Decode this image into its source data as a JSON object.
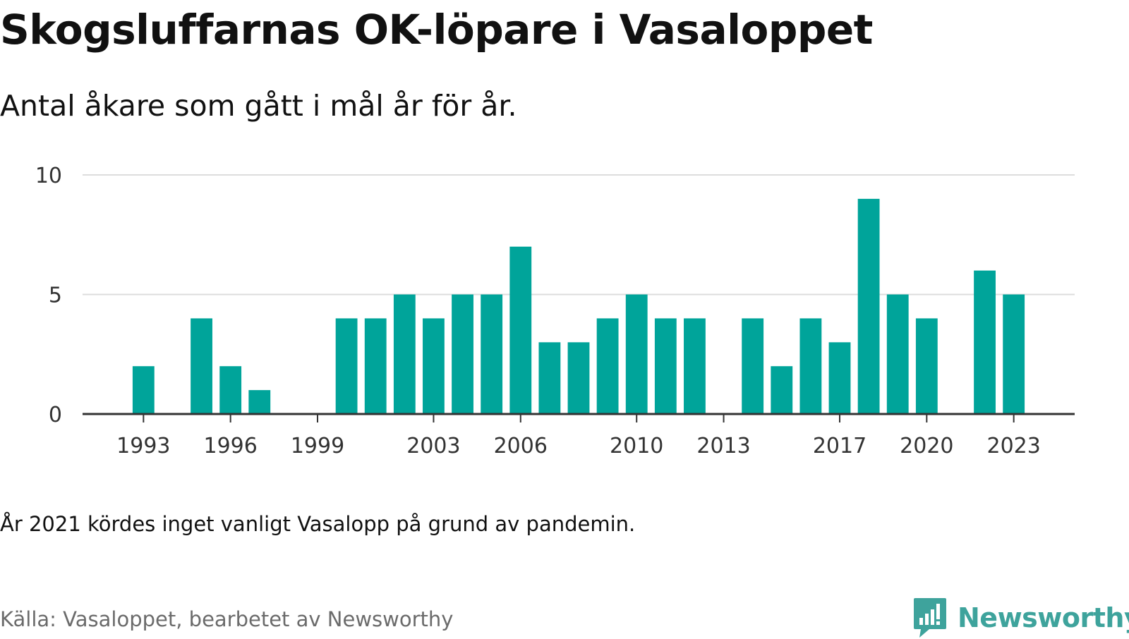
{
  "header": {
    "title": "Skogsluffarnas OK-löpare i Vasaloppet",
    "subtitle": "Antal åkare som gått i mål år för år."
  },
  "footer": {
    "note": "År 2021 kördes inget vanligt Vasalopp på grund av pandemin.",
    "source": "Källa: Vasaloppet, bearbetet av Newsworthy",
    "brand_name": "Newsworthy",
    "brand_icon": "newsworthy-logo-icon",
    "brand_color": "#3ea39c"
  },
  "colors": {
    "bar": "#00a49a",
    "gridline": "#dddddd",
    "axis": "#333333",
    "tick_label": "#333333"
  },
  "chart_data": {
    "type": "bar",
    "title": "Skogsluffarnas OK-löpare i Vasaloppet",
    "subtitle": "Antal åkare som gått i mål år för år.",
    "xlabel": "",
    "ylabel": "",
    "x_range": [
      1990.9,
      2025.1
    ],
    "ylim": [
      0,
      10
    ],
    "y_ticks": [
      0,
      5,
      10
    ],
    "x_ticks": [
      1993,
      1996,
      1999,
      2003,
      2006,
      2010,
      2013,
      2017,
      2020,
      2023
    ],
    "grid": true,
    "legend": "none",
    "x": [
      1993,
      1994,
      1995,
      1996,
      1997,
      1998,
      1999,
      2000,
      2001,
      2002,
      2003,
      2004,
      2005,
      2006,
      2007,
      2008,
      2009,
      2010,
      2011,
      2012,
      2013,
      2014,
      2015,
      2016,
      2017,
      2018,
      2019,
      2020,
      2021,
      2022,
      2023
    ],
    "values": [
      2,
      0,
      4,
      2,
      1,
      0,
      0,
      4,
      4,
      5,
      4,
      5,
      5,
      7,
      3,
      3,
      4,
      5,
      4,
      4,
      0,
      4,
      2,
      4,
      3,
      9,
      5,
      4,
      0,
      6,
      5
    ]
  }
}
